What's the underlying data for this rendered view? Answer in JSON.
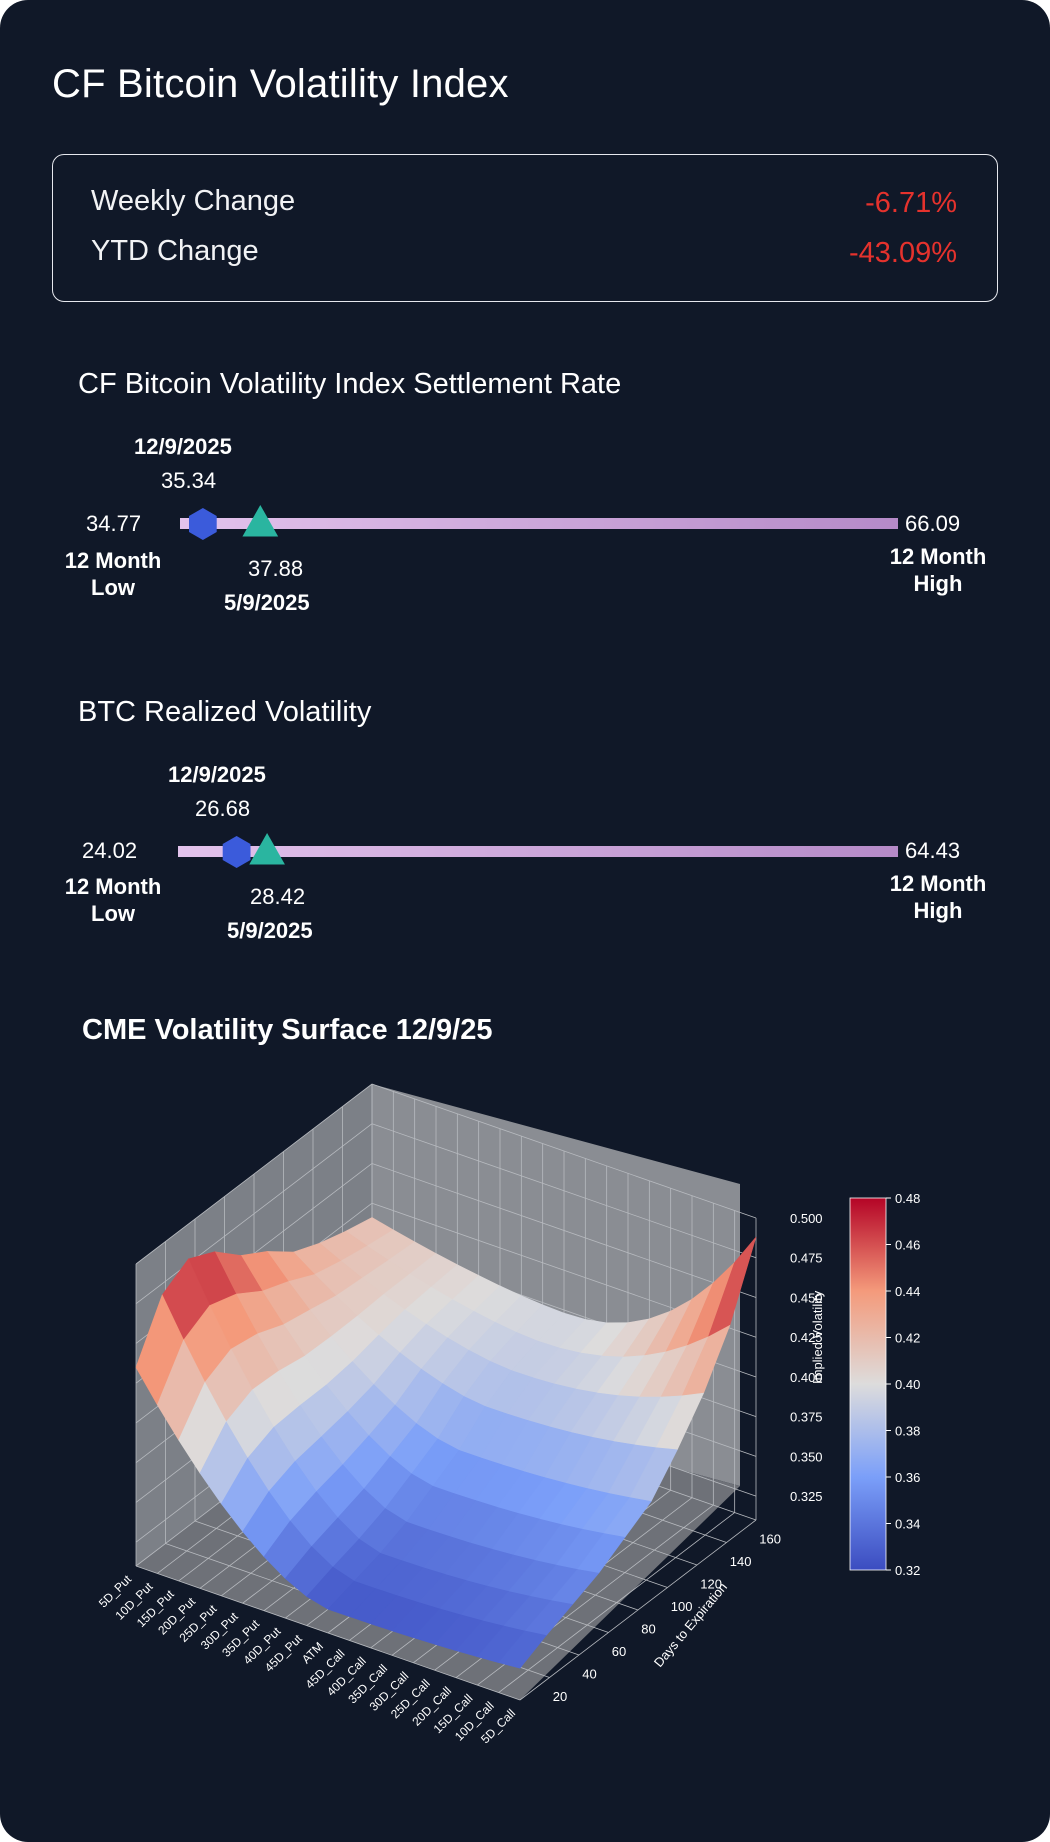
{
  "title": "CF Bitcoin Volatility Index",
  "changes": {
    "weekly_label": "Weekly Change",
    "weekly_value": "-6.71%",
    "ytd_label": "YTD Change",
    "ytd_value": "-43.09%"
  },
  "colors": {
    "background": "#101828",
    "negative": "#e5322d",
    "current_marker": "#3b5bdb",
    "past_marker": "#2ab5a0",
    "range_bar": "#c9a3d6"
  },
  "settlement": {
    "title": "CF Bitcoin Volatility Index Settlement Rate",
    "low": 34.77,
    "low_text": "34.77",
    "high": 66.09,
    "high_text": "66.09",
    "low_label": "12 Month Low",
    "high_label": "12 Month High",
    "current_date": "12/9/2025",
    "current_value": 35.34,
    "current_text": "35.34",
    "past_date": "5/9/2025",
    "past_value": 37.88,
    "past_text": "37.88"
  },
  "realized": {
    "title": "BTC Realized Volatility",
    "low": 24.02,
    "low_text": "24.02",
    "high": 64.43,
    "high_text": "64.43",
    "low_label": "12 Month Low",
    "high_label": "12 Month High",
    "current_date": "12/9/2025",
    "current_value": 26.68,
    "current_text": "26.68",
    "past_date": "5/9/2025",
    "past_value": 28.42,
    "past_text": "28.42"
  },
  "chart_data": {
    "type": "surface",
    "title": "CME Volatility Surface 12/9/25",
    "xlabel": "",
    "ylabel": "Days to Expiration",
    "zlabel": "Implied Volatility",
    "strikes": [
      "5D_Put",
      "10D_Put",
      "15D_Put",
      "20D_Put",
      "25D_Put",
      "30D_Put",
      "35D_Put",
      "40D_Put",
      "45D_Put",
      "ATM",
      "45D_Call",
      "40D_Call",
      "35D_Call",
      "30D_Call",
      "25D_Call",
      "20D_Call",
      "15D_Call",
      "10D_Call",
      "5D_Call"
    ],
    "days": [
      7,
      14,
      21,
      30,
      45,
      60,
      90,
      120,
      150,
      180
    ],
    "ytick_labels": [
      "20",
      "40",
      "60",
      "80",
      "100",
      "120",
      "140",
      "160"
    ],
    "zlim": [
      0.31,
      0.5
    ],
    "ztick_labels": [
      "0.325",
      "0.350",
      "0.375",
      "0.400",
      "0.425",
      "0.450",
      "0.475",
      "0.500"
    ],
    "colorbar": {
      "min": 0.32,
      "max": 0.48,
      "tick_labels": [
        "0.32",
        "0.34",
        "0.36",
        "0.38",
        "0.40",
        "0.42",
        "0.44",
        "0.46",
        "0.48"
      ]
    },
    "surface_model": {
      "atm_iv_by_day": [
        0.325,
        0.33,
        0.335,
        0.342,
        0.352,
        0.362,
        0.377,
        0.387,
        0.393,
        0.398
      ],
      "put_wing_by_day": [
        0.435,
        0.468,
        0.478,
        0.47,
        0.455,
        0.445,
        0.432,
        0.425,
        0.42,
        0.416
      ],
      "call_wing_by_day": [
        0.33,
        0.338,
        0.345,
        0.352,
        0.362,
        0.372,
        0.392,
        0.415,
        0.445,
        0.488
      ]
    }
  }
}
